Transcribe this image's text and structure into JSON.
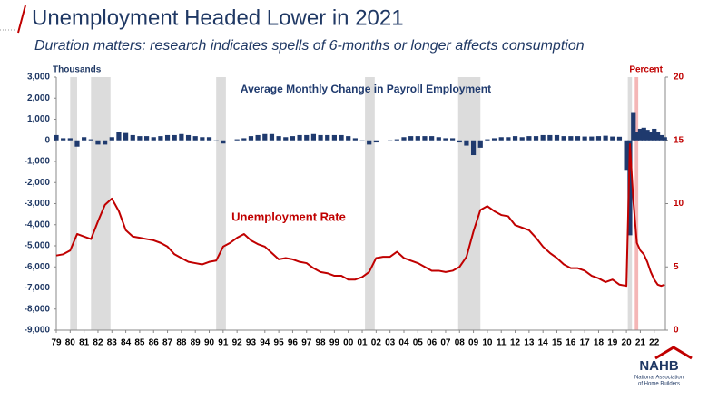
{
  "title": "Unemployment Headed Lower in 2021",
  "subtitle": "Duration matters: research indicates spells of 6-months or longer affects consumption",
  "logo": {
    "name": "NAHB",
    "lines": [
      "National Association",
      "of Home Builders"
    ]
  },
  "chart_data": {
    "type": "combo",
    "y_label": "Thousands",
    "y2_label": "Percent",
    "x": [
      1979,
      1979.5,
      1980,
      1980.5,
      1981,
      1981.5,
      1982,
      1982.5,
      1983,
      1983.5,
      1984,
      1984.5,
      1985,
      1985.5,
      1986,
      1986.5,
      1987,
      1987.5,
      1988,
      1988.5,
      1989,
      1989.5,
      1990,
      1990.5,
      1991,
      1991.5,
      1992,
      1992.5,
      1993,
      1993.5,
      1994,
      1994.5,
      1995,
      1995.5,
      1996,
      1996.5,
      1997,
      1997.5,
      1998,
      1998.5,
      1999,
      1999.5,
      2000,
      2000.5,
      2001,
      2001.5,
      2002,
      2002.5,
      2003,
      2003.5,
      2004,
      2004.5,
      2005,
      2005.5,
      2006,
      2006.5,
      2007,
      2007.5,
      2008,
      2008.5,
      2009,
      2009.5,
      2010,
      2010.5,
      2011,
      2011.5,
      2012,
      2012.5,
      2013,
      2013.5,
      2014,
      2014.5,
      2015,
      2015.5,
      2016,
      2016.5,
      2017,
      2017.5,
      2018,
      2018.5,
      2019,
      2019.5,
      2020,
      2020.25,
      2020.5,
      2020.75,
      2021,
      2021.25,
      2021.5,
      2021.75,
      2022,
      2022.25,
      2022.5,
      2022.75
    ],
    "series": [
      {
        "name": "Average Monthly Change in Payroll Employment",
        "type": "bar",
        "color": "#1f3a6e",
        "values": [
          250,
          100,
          100,
          -300,
          150,
          50,
          -200,
          -200,
          150,
          400,
          350,
          250,
          200,
          200,
          150,
          200,
          250,
          250,
          300,
          250,
          200,
          150,
          150,
          -50,
          -150,
          0,
          50,
          100,
          200,
          250,
          300,
          300,
          200,
          150,
          200,
          250,
          250,
          300,
          250,
          250,
          250,
          250,
          200,
          100,
          -50,
          -200,
          -100,
          0,
          -50,
          50,
          150,
          200,
          200,
          200,
          200,
          150,
          100,
          100,
          -100,
          -250,
          -700,
          -350,
          50,
          100,
          150,
          150,
          200,
          150,
          200,
          200,
          250,
          250,
          250,
          200,
          200,
          200,
          180,
          180,
          200,
          220,
          180,
          170,
          -1400,
          -4500,
          1300,
          400,
          550,
          600,
          500,
          400,
          550,
          400,
          250,
          150
        ]
      },
      {
        "name": "Unemployment Rate",
        "type": "line",
        "color": "#c00000",
        "axis": "y2",
        "values": [
          5.9,
          6.0,
          6.3,
          7.6,
          7.4,
          7.2,
          8.6,
          9.9,
          10.4,
          9.4,
          7.9,
          7.4,
          7.3,
          7.2,
          7.1,
          6.9,
          6.6,
          6.0,
          5.7,
          5.4,
          5.3,
          5.2,
          5.4,
          5.5,
          6.6,
          6.9,
          7.3,
          7.6,
          7.1,
          6.8,
          6.6,
          6.1,
          5.6,
          5.7,
          5.6,
          5.4,
          5.3,
          4.9,
          4.6,
          4.5,
          4.3,
          4.3,
          4.0,
          4.0,
          4.2,
          4.6,
          5.7,
          5.8,
          5.8,
          6.2,
          5.7,
          5.5,
          5.3,
          5.0,
          4.7,
          4.7,
          4.6,
          4.7,
          5.0,
          5.8,
          7.8,
          9.5,
          9.8,
          9.4,
          9.1,
          9.0,
          8.3,
          8.1,
          7.9,
          7.3,
          6.6,
          6.1,
          5.7,
          5.2,
          4.9,
          4.9,
          4.7,
          4.3,
          4.1,
          3.8,
          4.0,
          3.6,
          3.5,
          14.7,
          10.2,
          6.9,
          6.3,
          6.0,
          5.4,
          4.6,
          4.0,
          3.6,
          3.5,
          3.6
        ]
      }
    ],
    "recessions": [
      [
        1980,
        1980.5
      ],
      [
        1981.5,
        1982.9
      ],
      [
        1990.5,
        1991.2
      ],
      [
        2001.2,
        2001.9
      ],
      [
        2007.9,
        2009.5
      ],
      [
        2020.1,
        2020.4
      ]
    ],
    "recession_color": "#dcdcdc",
    "highlight": [
      2020.6,
      2020.85
    ],
    "highlight_color": "#f4b6b6",
    "xlim": [
      1979,
      2022.8
    ],
    "xticks": [
      {
        "value": 1979,
        "label": "79"
      },
      {
        "value": 1980,
        "label": "80"
      },
      {
        "value": 1981,
        "label": "81"
      },
      {
        "value": 1982,
        "label": "82"
      },
      {
        "value": 1983,
        "label": "83"
      },
      {
        "value": 1984,
        "label": "84"
      },
      {
        "value": 1985,
        "label": "85"
      },
      {
        "value": 1986,
        "label": "86"
      },
      {
        "value": 1987,
        "label": "87"
      },
      {
        "value": 1988,
        "label": "88"
      },
      {
        "value": 1989,
        "label": "89"
      },
      {
        "value": 1990,
        "label": "90"
      },
      {
        "value": 1991,
        "label": "91"
      },
      {
        "value": 1992,
        "label": "92"
      },
      {
        "value": 1993,
        "label": "93"
      },
      {
        "value": 1994,
        "label": "94"
      },
      {
        "value": 1995,
        "label": "95"
      },
      {
        "value": 1996,
        "label": "96"
      },
      {
        "value": 1997,
        "label": "97"
      },
      {
        "value": 1998,
        "label": "98"
      },
      {
        "value": 1999,
        "label": "99"
      },
      {
        "value": 2000,
        "label": "00"
      },
      {
        "value": 2001,
        "label": "01"
      },
      {
        "value": 2002,
        "label": "02"
      },
      {
        "value": 2003,
        "label": "03"
      },
      {
        "value": 2004,
        "label": "04"
      },
      {
        "value": 2005,
        "label": "05"
      },
      {
        "value": 2006,
        "label": "06"
      },
      {
        "value": 2007,
        "label": "07"
      },
      {
        "value": 2008,
        "label": "08"
      },
      {
        "value": 2009,
        "label": "09"
      },
      {
        "value": 2010,
        "label": "10"
      },
      {
        "value": 2011,
        "label": "11"
      },
      {
        "value": 2012,
        "label": "12"
      },
      {
        "value": 2013,
        "label": "13"
      },
      {
        "value": 2014,
        "label": "14"
      },
      {
        "value": 2015,
        "label": "15"
      },
      {
        "value": 2016,
        "label": "16"
      },
      {
        "value": 2017,
        "label": "17"
      },
      {
        "value": 2018,
        "label": "18"
      },
      {
        "value": 2019,
        "label": "19"
      },
      {
        "value": 2020,
        "label": "20"
      },
      {
        "value": 2021,
        "label": "21"
      },
      {
        "value": 2022,
        "label": "22"
      }
    ],
    "ylim": [
      -9000,
      3000
    ],
    "yticks": [
      {
        "value": 3000,
        "label": "3,000"
      },
      {
        "value": 2000,
        "label": "2,000"
      },
      {
        "value": 1000,
        "label": "1,000"
      },
      0,
      {
        "value": -1000,
        "label": "-1,000"
      },
      {
        "value": -2000,
        "label": "-2,000"
      },
      {
        "value": -3000,
        "label": "-3,000"
      },
      {
        "value": -4000,
        "label": "-4,000"
      },
      {
        "value": -5000,
        "label": "-5,000"
      },
      {
        "value": -6000,
        "label": "-6,000"
      },
      {
        "value": -7000,
        "label": "-7,000"
      },
      {
        "value": -8000,
        "label": "-8,000"
      },
      {
        "value": -9000,
        "label": "-9,000"
      }
    ],
    "y2lim": [
      0,
      20
    ],
    "y2ticks": [
      0,
      5,
      10,
      15,
      20
    ]
  }
}
